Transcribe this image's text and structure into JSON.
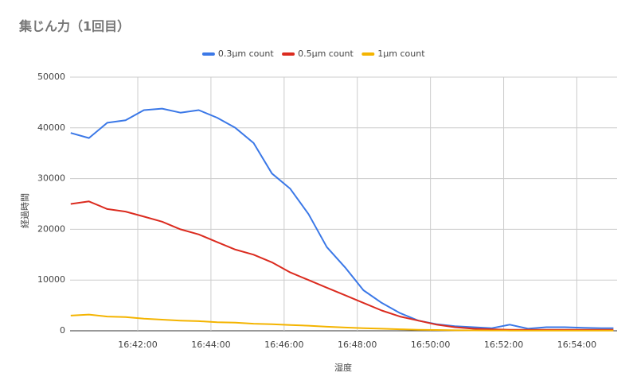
{
  "chart_data": {
    "type": "line",
    "title": "集じん力（1回目）",
    "x_label": "湿度",
    "y_label": "経過時間",
    "x": [
      "16:40:10",
      "16:40:40",
      "16:41:10",
      "16:41:40",
      "16:42:10",
      "16:42:40",
      "16:43:10",
      "16:43:40",
      "16:44:10",
      "16:44:40",
      "16:45:10",
      "16:45:40",
      "16:46:10",
      "16:46:40",
      "16:47:10",
      "16:47:40",
      "16:48:10",
      "16:48:40",
      "16:49:10",
      "16:49:40",
      "16:50:10",
      "16:50:40",
      "16:51:10",
      "16:51:40",
      "16:52:10",
      "16:52:40",
      "16:53:10",
      "16:53:40",
      "16:54:10",
      "16:54:40",
      "16:55:00"
    ],
    "series": [
      {
        "name": "0.3µm count",
        "color": "#3b78e7",
        "values": [
          39000,
          38000,
          41000,
          41500,
          43500,
          43800,
          43000,
          43500,
          42000,
          40000,
          37000,
          31000,
          28000,
          23000,
          16500,
          12500,
          8000,
          5500,
          3500,
          2000,
          1300,
          900,
          700,
          500,
          1200,
          400,
          700,
          700,
          600,
          500,
          500
        ]
      },
      {
        "name": "0.5µm count",
        "color": "#db2b1f",
        "values": [
          25000,
          25500,
          24000,
          23500,
          22500,
          21500,
          20000,
          19000,
          17500,
          16000,
          15000,
          13500,
          11500,
          10000,
          8500,
          7000,
          5500,
          4000,
          2800,
          2000,
          1200,
          700,
          400,
          300,
          200,
          200,
          200,
          200,
          200,
          200,
          200
        ]
      },
      {
        "name": "1µm count",
        "color": "#f4b400",
        "values": [
          3000,
          3200,
          2800,
          2700,
          2400,
          2200,
          2000,
          1900,
          1700,
          1600,
          1400,
          1300,
          1150,
          1000,
          800,
          650,
          500,
          400,
          300,
          200,
          150,
          100,
          80,
          60,
          50,
          40,
          40,
          30,
          30,
          30,
          30
        ]
      }
    ],
    "xlim": [
      "16:40:09",
      "16:55:06"
    ],
    "xticks": [
      "16:42:00",
      "16:44:00",
      "16:46:00",
      "16:48:00",
      "16:50:00",
      "16:52:00",
      "16:54:00"
    ],
    "ylim": [
      0,
      50000
    ],
    "yticks": [
      0,
      10000,
      20000,
      30000,
      40000,
      50000
    ],
    "grid": true,
    "legend": "top"
  }
}
